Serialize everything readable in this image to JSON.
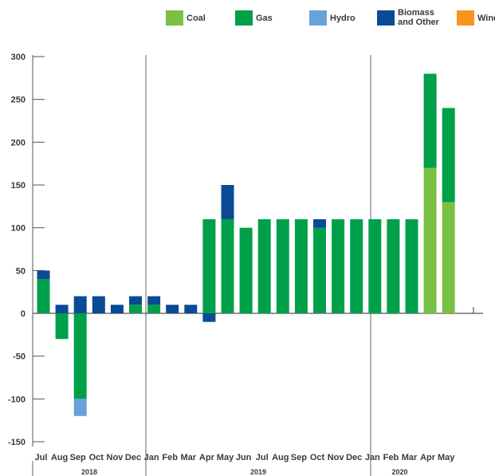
{
  "chart_data": {
    "type": "bar",
    "stacked": true,
    "categories": [
      "Jul",
      "Aug",
      "Sep",
      "Oct",
      "Nov",
      "Dec",
      "Jan",
      "Feb",
      "Mar",
      "Apr",
      "May",
      "Jun",
      "Jul",
      "Aug",
      "Sep",
      "Oct",
      "Nov",
      "Dec",
      "Jan",
      "Feb",
      "Mar",
      "Apr",
      "May"
    ],
    "year_groups": [
      {
        "label": "2018",
        "start": 0,
        "end": 5
      },
      {
        "label": "2019",
        "start": 6,
        "end": 17
      },
      {
        "label": "2020",
        "start": 18,
        "end": 22
      }
    ],
    "series": [
      {
        "name": "Coal",
        "color": "#7ac143",
        "values": [
          0,
          0,
          0,
          0,
          0,
          0,
          0,
          0,
          0,
          0,
          0,
          0,
          0,
          0,
          0,
          0,
          0,
          0,
          0,
          0,
          0,
          170,
          130
        ]
      },
      {
        "name": "Gas",
        "color": "#00a04b",
        "values": [
          40,
          -30,
          -100,
          0,
          0,
          10,
          10,
          0,
          0,
          110,
          110,
          100,
          110,
          110,
          110,
          100,
          110,
          110,
          110,
          110,
          110,
          110,
          110
        ]
      },
      {
        "name": "Hydro",
        "color": "#67a3d9",
        "values": [
          0,
          0,
          -20,
          0,
          0,
          0,
          0,
          0,
          0,
          0,
          0,
          0,
          0,
          0,
          0,
          0,
          0,
          0,
          0,
          0,
          0,
          0,
          0
        ]
      },
      {
        "name": "Biomass and Other",
        "legend_lines": [
          "Biomass",
          "and Other"
        ],
        "color": "#0a4a96",
        "values": [
          10,
          10,
          20,
          20,
          10,
          10,
          10,
          10,
          10,
          -10,
          40,
          0,
          0,
          0,
          0,
          10,
          0,
          0,
          0,
          0,
          0,
          0,
          0
        ]
      },
      {
        "name": "Wind",
        "color": "#f7941d",
        "values": [
          0,
          0,
          0,
          0,
          0,
          0,
          0,
          0,
          0,
          0,
          0,
          0,
          0,
          0,
          0,
          0,
          0,
          0,
          0,
          0,
          0,
          0,
          0
        ]
      }
    ],
    "yticks": [
      -150,
      -100,
      -50,
      0,
      50,
      100,
      150,
      200,
      250,
      300
    ],
    "ylim": [
      -150,
      300
    ],
    "grid": false,
    "legend_position": "top"
  }
}
